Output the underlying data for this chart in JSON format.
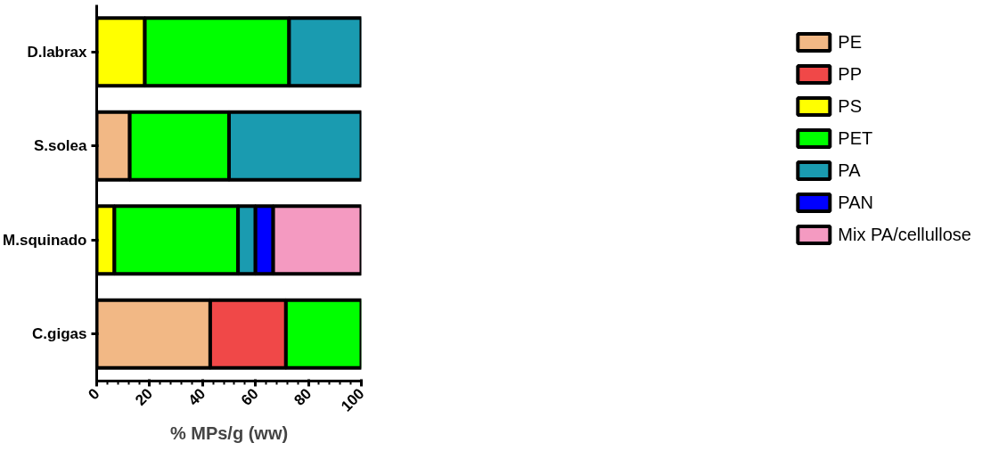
{
  "chart_data": {
    "type": "bar",
    "orientation": "horizontal",
    "stacked": true,
    "xlabel": "% MPs/g (ww)",
    "categories": [
      "D.labrax",
      "S.solea",
      "M.squinado",
      "C.gigas"
    ],
    "series": [
      {
        "name": "PE",
        "color": "#f2b885",
        "values": [
          null,
          12.5,
          null,
          42.9
        ]
      },
      {
        "name": "PP",
        "color": "#f04848",
        "values": [
          null,
          null,
          null,
          28.6
        ]
      },
      {
        "name": "PS",
        "color": "#ffff00",
        "values": [
          18.2,
          null,
          6.7,
          null
        ]
      },
      {
        "name": "PET",
        "color": "#00ff00",
        "values": [
          54.5,
          37.5,
          46.7,
          28.5
        ]
      },
      {
        "name": "PA",
        "color": "#1a9bb0",
        "values": [
          27.3,
          50,
          6.6,
          null
        ]
      },
      {
        "name": "PAN",
        "color": "#0000ff",
        "values": [
          null,
          null,
          6.7,
          null
        ]
      },
      {
        "name": "Mix PA/cellullose",
        "color": "#f49ac1",
        "values": [
          null,
          null,
          33.3,
          null
        ]
      }
    ],
    "xlim": [
      0,
      100
    ],
    "xticks": [
      0,
      20,
      40,
      60,
      80,
      100
    ],
    "grid": false,
    "legend": "right"
  }
}
